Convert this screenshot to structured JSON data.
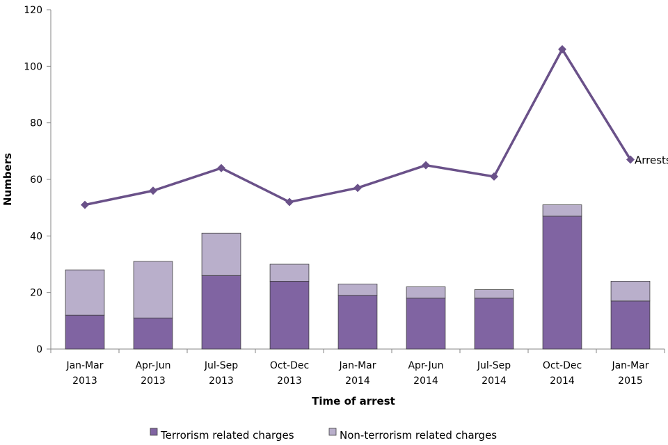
{
  "chart_data": {
    "type": "bar",
    "title": "",
    "xlabel": "Time of arrest",
    "ylabel": "Numbers",
    "ylim": [
      0,
      120
    ],
    "yticks": [
      0,
      20,
      40,
      60,
      80,
      100,
      120
    ],
    "grid": false,
    "legend_position": "bottom",
    "categories": [
      [
        "Jan-Mar",
        "2013"
      ],
      [
        "Apr-Jun",
        "2013"
      ],
      [
        "Jul-Sep",
        "2013"
      ],
      [
        "Oct-Dec",
        "2013"
      ],
      [
        "Jan-Mar",
        "2014"
      ],
      [
        "Apr-Jun",
        "2014"
      ],
      [
        "Jul-Sep",
        "2014"
      ],
      [
        "Oct-Dec",
        "2014"
      ],
      [
        "Jan-Mar",
        "2015"
      ]
    ],
    "series": [
      {
        "name": "Terrorism related charges",
        "kind": "stacked-bar",
        "color": "#8064a2",
        "values": [
          12,
          11,
          26,
          24,
          19,
          18,
          18,
          47,
          17
        ]
      },
      {
        "name": "Non-terrorism related charges",
        "kind": "stacked-bar",
        "color": "#b9afcb",
        "values": [
          16,
          20,
          15,
          6,
          4,
          4,
          3,
          4,
          7
        ]
      },
      {
        "name": "Arrests",
        "kind": "line",
        "color": "#6a5189",
        "marker": "diamond",
        "values": [
          51,
          56,
          64,
          52,
          57,
          65,
          61,
          106,
          67
        ]
      }
    ]
  }
}
